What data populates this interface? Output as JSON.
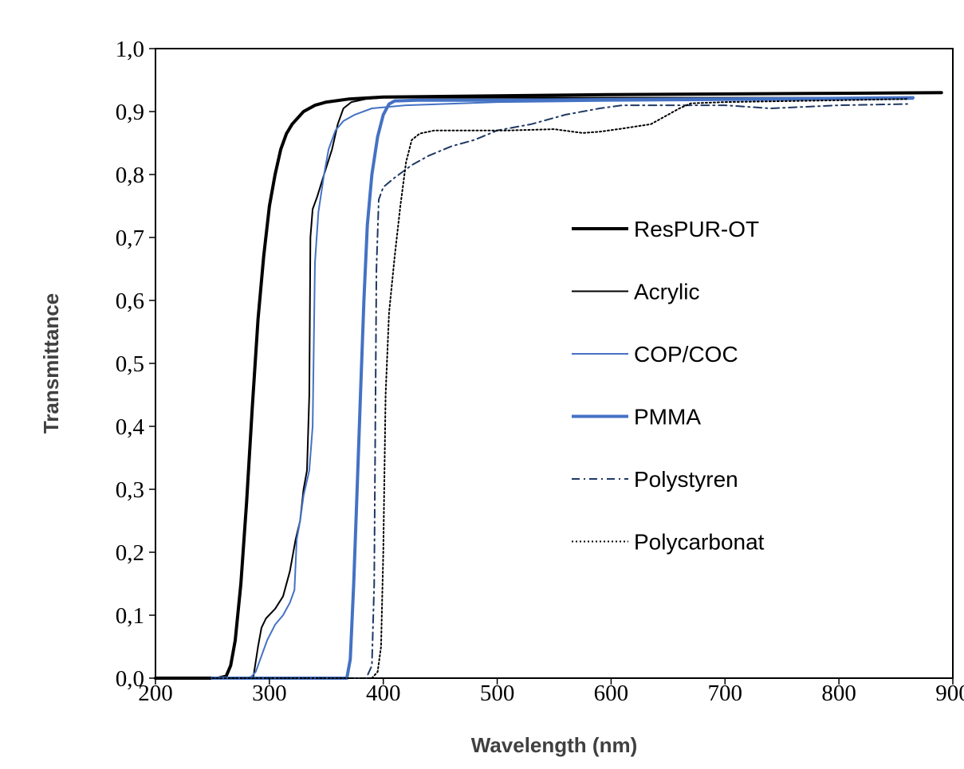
{
  "chart_data": {
    "type": "line",
    "title": "",
    "xlabel": "Wavelength (nm)",
    "ylabel": "Transmittance",
    "xlim": [
      200,
      900
    ],
    "ylim": [
      0.0,
      1.0
    ],
    "x_ticks": [
      "200",
      "300",
      "400",
      "500",
      "600",
      "700",
      "800",
      "900"
    ],
    "y_ticks": [
      "0,0",
      "0,1",
      "0,2",
      "0,3",
      "0,4",
      "0,5",
      "0,6",
      "0,7",
      "0,8",
      "0,9",
      "1,0"
    ],
    "grid": false,
    "legend_position": "right, inside plot area",
    "series": [
      {
        "name": "ResPUR-OT",
        "color": "#000000",
        "style": "solid-thick",
        "points": [
          [
            200,
            0.0
          ],
          [
            255,
            0.0
          ],
          [
            262,
            0.003
          ],
          [
            266,
            0.02
          ],
          [
            270,
            0.06
          ],
          [
            275,
            0.15
          ],
          [
            280,
            0.28
          ],
          [
            285,
            0.43
          ],
          [
            290,
            0.57
          ],
          [
            295,
            0.67
          ],
          [
            300,
            0.75
          ],
          [
            305,
            0.8
          ],
          [
            310,
            0.84
          ],
          [
            315,
            0.865
          ],
          [
            320,
            0.88
          ],
          [
            330,
            0.9
          ],
          [
            340,
            0.91
          ],
          [
            350,
            0.915
          ],
          [
            370,
            0.92
          ],
          [
            400,
            0.923
          ],
          [
            500,
            0.925
          ],
          [
            600,
            0.927
          ],
          [
            700,
            0.928
          ],
          [
            800,
            0.929
          ],
          [
            890,
            0.93
          ]
        ]
      },
      {
        "name": "Acrylic",
        "color": "#000000",
        "style": "solid-thin",
        "points": [
          [
            250,
            0.0
          ],
          [
            280,
            0.0
          ],
          [
            286,
            0.003
          ],
          [
            290,
            0.05
          ],
          [
            293,
            0.08
          ],
          [
            297,
            0.095
          ],
          [
            305,
            0.11
          ],
          [
            312,
            0.13
          ],
          [
            318,
            0.17
          ],
          [
            323,
            0.22
          ],
          [
            327,
            0.25
          ],
          [
            330,
            0.3
          ],
          [
            333,
            0.33
          ],
          [
            335,
            0.45
          ],
          [
            336,
            0.7
          ],
          [
            338,
            0.745
          ],
          [
            342,
            0.765
          ],
          [
            348,
            0.8
          ],
          [
            355,
            0.84
          ],
          [
            360,
            0.88
          ],
          [
            365,
            0.905
          ],
          [
            372,
            0.915
          ],
          [
            385,
            0.92
          ],
          [
            400,
            0.922
          ],
          [
            500,
            0.922
          ],
          [
            700,
            0.922
          ],
          [
            860,
            0.922
          ]
        ]
      },
      {
        "name": "COP/COC",
        "color": "#4472c4",
        "style": "solid-thin",
        "points": [
          [
            250,
            0.0
          ],
          [
            283,
            0.0
          ],
          [
            288,
            0.01
          ],
          [
            292,
            0.03
          ],
          [
            298,
            0.06
          ],
          [
            305,
            0.085
          ],
          [
            312,
            0.1
          ],
          [
            318,
            0.12
          ],
          [
            322,
            0.14
          ],
          [
            324,
            0.22
          ],
          [
            327,
            0.25
          ],
          [
            330,
            0.29
          ],
          [
            335,
            0.33
          ],
          [
            338,
            0.4
          ],
          [
            340,
            0.66
          ],
          [
            343,
            0.74
          ],
          [
            348,
            0.8
          ],
          [
            352,
            0.84
          ],
          [
            358,
            0.87
          ],
          [
            365,
            0.885
          ],
          [
            375,
            0.895
          ],
          [
            390,
            0.905
          ],
          [
            420,
            0.91
          ],
          [
            500,
            0.915
          ],
          [
            600,
            0.917
          ],
          [
            700,
            0.918
          ],
          [
            865,
            0.92
          ]
        ]
      },
      {
        "name": "PMMA",
        "color": "#4472c4",
        "style": "solid-thick",
        "points": [
          [
            250,
            0.0
          ],
          [
            368,
            0.0
          ],
          [
            371,
            0.03
          ],
          [
            374,
            0.15
          ],
          [
            377,
            0.3
          ],
          [
            380,
            0.45
          ],
          [
            383,
            0.6
          ],
          [
            386,
            0.72
          ],
          [
            390,
            0.8
          ],
          [
            395,
            0.86
          ],
          [
            400,
            0.895
          ],
          [
            405,
            0.912
          ],
          [
            410,
            0.917
          ],
          [
            430,
            0.918
          ],
          [
            500,
            0.918
          ],
          [
            600,
            0.919
          ],
          [
            700,
            0.92
          ],
          [
            800,
            0.921
          ],
          [
            865,
            0.922
          ]
        ]
      },
      {
        "name": "Polystyren",
        "color": "#1f3864",
        "style": "dash-dot",
        "points": [
          [
            250,
            0.0
          ],
          [
            385,
            0.0
          ],
          [
            390,
            0.02
          ],
          [
            392,
            0.15
          ],
          [
            393,
            0.4
          ],
          [
            394,
            0.65
          ],
          [
            396,
            0.76
          ],
          [
            400,
            0.78
          ],
          [
            410,
            0.795
          ],
          [
            425,
            0.815
          ],
          [
            440,
            0.83
          ],
          [
            460,
            0.845
          ],
          [
            480,
            0.855
          ],
          [
            500,
            0.87
          ],
          [
            530,
            0.88
          ],
          [
            560,
            0.895
          ],
          [
            590,
            0.905
          ],
          [
            610,
            0.91
          ],
          [
            650,
            0.91
          ],
          [
            700,
            0.91
          ],
          [
            740,
            0.905
          ],
          [
            800,
            0.91
          ],
          [
            860,
            0.912
          ]
        ]
      },
      {
        "name": "Polycarbonat",
        "color": "#000000",
        "style": "dotted",
        "points": [
          [
            250,
            0.0
          ],
          [
            390,
            0.0
          ],
          [
            395,
            0.01
          ],
          [
            398,
            0.05
          ],
          [
            400,
            0.2
          ],
          [
            402,
            0.45
          ],
          [
            405,
            0.58
          ],
          [
            410,
            0.67
          ],
          [
            415,
            0.75
          ],
          [
            420,
            0.82
          ],
          [
            425,
            0.855
          ],
          [
            432,
            0.865
          ],
          [
            445,
            0.87
          ],
          [
            470,
            0.87
          ],
          [
            510,
            0.87
          ],
          [
            550,
            0.872
          ],
          [
            575,
            0.866
          ],
          [
            590,
            0.868
          ],
          [
            610,
            0.873
          ],
          [
            635,
            0.88
          ],
          [
            648,
            0.893
          ],
          [
            660,
            0.905
          ],
          [
            670,
            0.913
          ],
          [
            700,
            0.915
          ],
          [
            800,
            0.918
          ],
          [
            860,
            0.92
          ]
        ]
      }
    ]
  }
}
